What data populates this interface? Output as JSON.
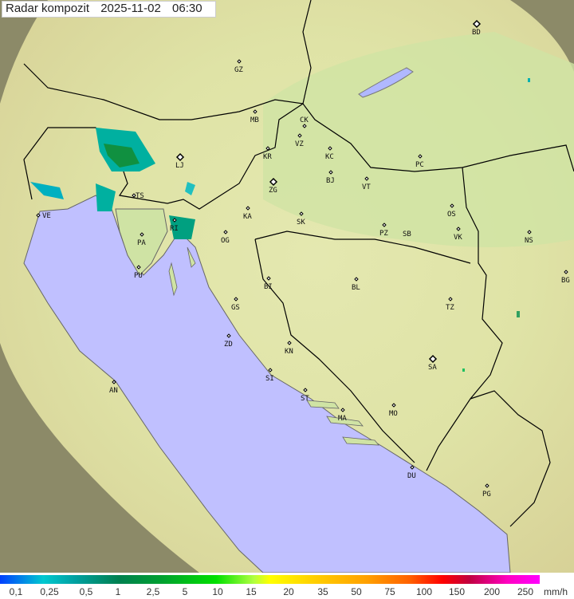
{
  "title": {
    "label": "Radar kompozit",
    "date": "2025-11-02",
    "time": "06:30"
  },
  "cities": [
    "GZ",
    "MB",
    "CK",
    "VZ",
    "KR",
    "KC",
    "LJ",
    "BD",
    "PC",
    "BJ",
    "VT",
    "ZG",
    "KA",
    "SK",
    "OS",
    "PZ",
    "SB",
    "VK",
    "NS",
    "VE",
    "TS",
    "PA",
    "RI",
    "OG",
    "PU",
    "BI",
    "BL",
    "GS",
    "TZ",
    "BG",
    "ZD",
    "KN",
    "SA",
    "SI",
    "ST",
    "AN",
    "MO",
    "MA",
    "DU",
    "PG"
  ],
  "legend": {
    "ticks": [
      "0,1",
      "0,25",
      "0,5",
      "1",
      "2,5",
      "5",
      "10",
      "15",
      "20",
      "35",
      "50",
      "75",
      "100",
      "150",
      "200",
      "250"
    ],
    "unit": "mm/h"
  },
  "colors": {
    "sea": "#c0c0ff",
    "land": "#d8e6a8",
    "border": "#000000",
    "out_of_range": "#8a8a70"
  }
}
